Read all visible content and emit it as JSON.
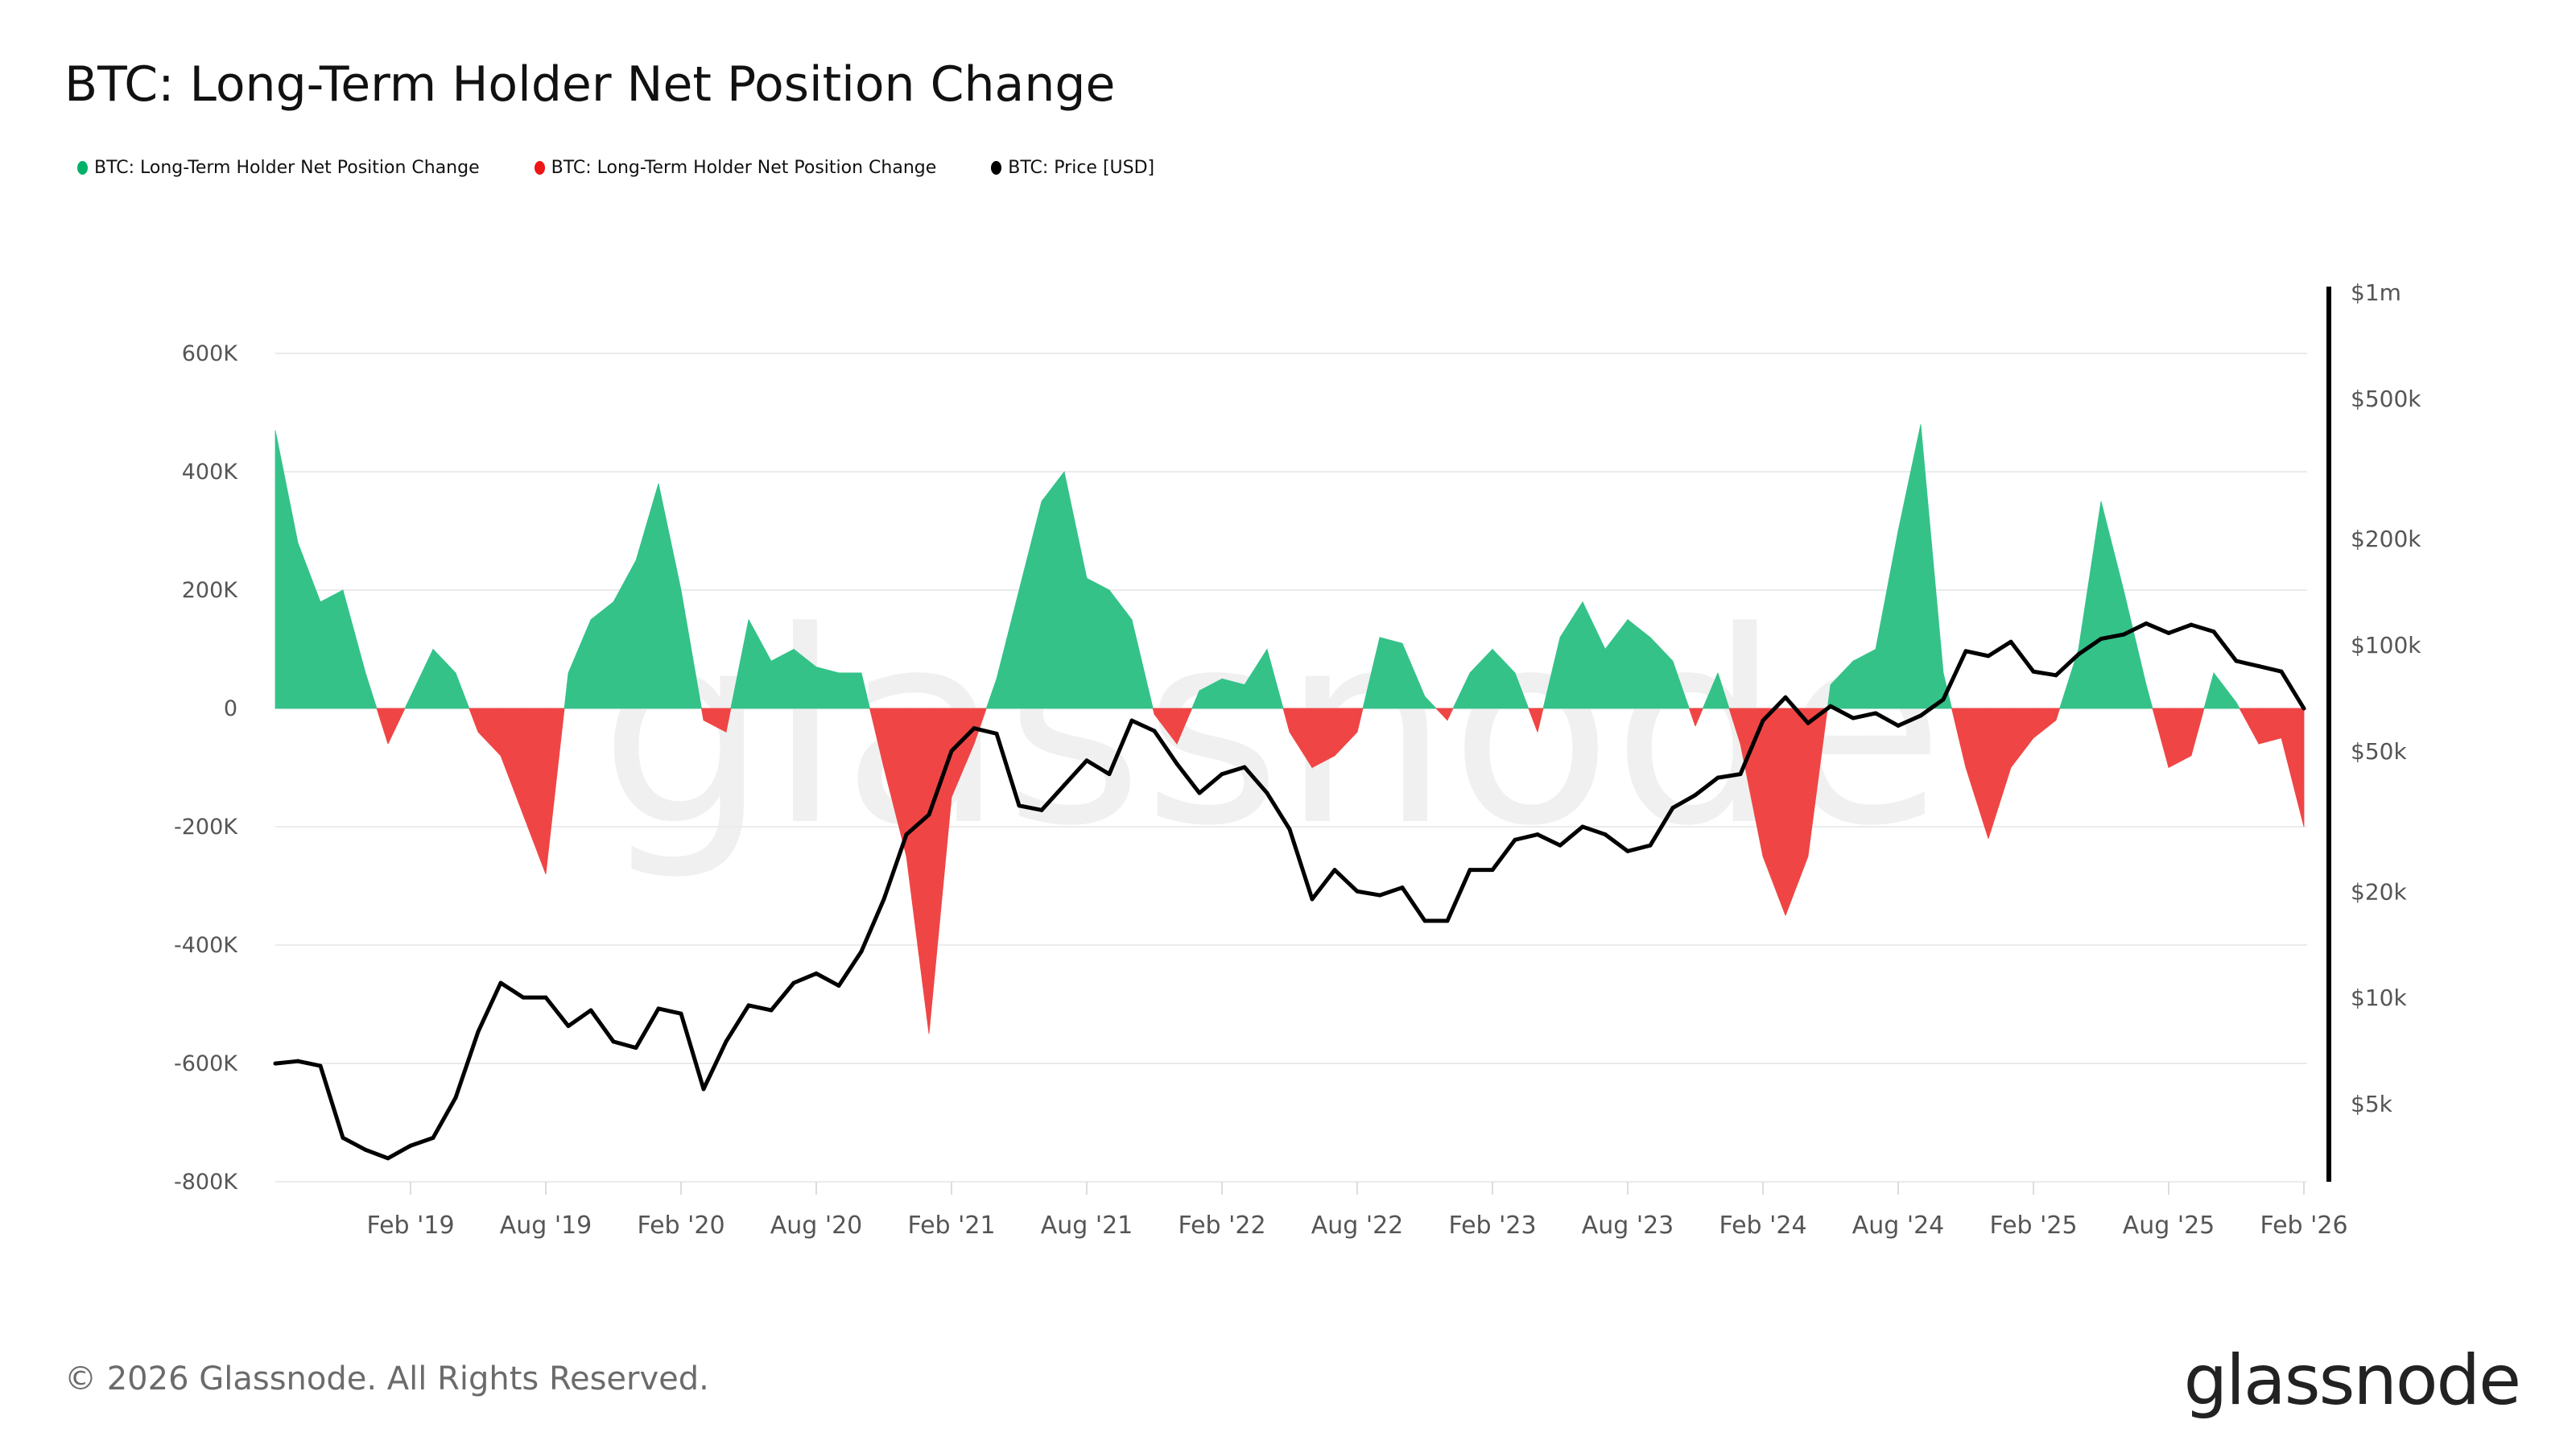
{
  "title": "BTC: Long-Term Holder Net Position Change",
  "legend": [
    {
      "label": "BTC: Long-Term Holder Net Position Change",
      "color": "#00b167"
    },
    {
      "label": "BTC: Long-Term Holder Net Position Change",
      "color": "#ee1515"
    },
    {
      "label": "BTC: Price [USD]",
      "color": "#000000"
    }
  ],
  "footer": "© 2026 Glassnode. All Rights Reserved.",
  "logo": "glassnode",
  "watermark": "glassnode",
  "chart_data": {
    "type": "area",
    "title": "BTC: Long-Term Holder Net Position Change",
    "colors": {
      "positive": "#34c289",
      "negative": "#f04545",
      "price": "#000000"
    },
    "x": [
      "2018-08",
      "2018-09",
      "2018-10",
      "2018-11",
      "2018-12",
      "2019-01",
      "2019-02",
      "2019-03",
      "2019-04",
      "2019-05",
      "2019-06",
      "2019-07",
      "2019-08",
      "2019-09",
      "2019-10",
      "2019-11",
      "2019-12",
      "2020-01",
      "2020-02",
      "2020-03",
      "2020-04",
      "2020-05",
      "2020-06",
      "2020-07",
      "2020-08",
      "2020-09",
      "2020-10",
      "2020-11",
      "2020-12",
      "2021-01",
      "2021-02",
      "2021-03",
      "2021-04",
      "2021-05",
      "2021-06",
      "2021-07",
      "2021-08",
      "2021-09",
      "2021-10",
      "2021-11",
      "2021-12",
      "2022-01",
      "2022-02",
      "2022-03",
      "2022-04",
      "2022-05",
      "2022-06",
      "2022-07",
      "2022-08",
      "2022-09",
      "2022-10",
      "2022-11",
      "2022-12",
      "2023-01",
      "2023-02",
      "2023-03",
      "2023-04",
      "2023-05",
      "2023-06",
      "2023-07",
      "2023-08",
      "2023-09",
      "2023-10",
      "2023-11",
      "2023-12",
      "2024-01",
      "2024-02",
      "2024-03",
      "2024-04",
      "2024-05",
      "2024-06",
      "2024-07",
      "2024-08",
      "2024-09",
      "2024-10",
      "2024-11",
      "2024-12",
      "2025-01",
      "2025-02",
      "2025-03",
      "2025-04",
      "2025-05",
      "2025-06",
      "2025-07",
      "2025-08",
      "2025-09",
      "2025-10",
      "2025-11",
      "2025-12",
      "2026-01",
      "2026-02"
    ],
    "series": [
      {
        "name": "BTC: Long-Term Holder Net Position Change",
        "axis": "left",
        "values": [
          470000,
          280000,
          180000,
          200000,
          60000,
          -60000,
          20000,
          100000,
          60000,
          -40000,
          -80000,
          -180000,
          -280000,
          60000,
          150000,
          180000,
          250000,
          380000,
          200000,
          -20000,
          -40000,
          150000,
          80000,
          100000,
          70000,
          60000,
          60000,
          -100000,
          -250000,
          -550000,
          -150000,
          -60000,
          50000,
          200000,
          350000,
          400000,
          220000,
          200000,
          150000,
          -10000,
          -60000,
          30000,
          50000,
          40000,
          100000,
          -40000,
          -100000,
          -80000,
          -40000,
          120000,
          110000,
          20000,
          -20000,
          60000,
          100000,
          60000,
          -40000,
          120000,
          180000,
          100000,
          150000,
          120000,
          80000,
          -30000,
          60000,
          -60000,
          -250000,
          -350000,
          -250000,
          40000,
          80000,
          100000,
          300000,
          480000,
          60000,
          -100000,
          -220000,
          -100000,
          -50000,
          -20000,
          100000,
          350000,
          200000,
          40000,
          -100000,
          -80000,
          60000,
          10000,
          -60000,
          -50000,
          -200000
        ]
      },
      {
        "name": "BTC: Price [USD]",
        "axis": "right",
        "scale": "log",
        "values": [
          6500,
          6600,
          6400,
          4000,
          3700,
          3500,
          3800,
          4000,
          5200,
          8000,
          11000,
          10000,
          10000,
          8300,
          9200,
          7500,
          7200,
          9300,
          9000,
          5500,
          7500,
          9500,
          9200,
          11000,
          11700,
          10800,
          13500,
          19000,
          29000,
          33000,
          50000,
          58000,
          56000,
          35000,
          34000,
          40000,
          47000,
          43000,
          61000,
          57000,
          46000,
          38000,
          43000,
          45000,
          38000,
          30000,
          19000,
          23000,
          20000,
          19500,
          20500,
          16500,
          16500,
          23000,
          23000,
          28000,
          29000,
          27000,
          30500,
          29000,
          26000,
          27000,
          34500,
          37500,
          42000,
          43000,
          61000,
          71000,
          60000,
          67000,
          62000,
          64000,
          59000,
          63000,
          70000,
          96000,
          93000,
          102000,
          84000,
          82000,
          94000,
          104000,
          107000,
          115000,
          108000,
          114000,
          109000,
          90000,
          87000,
          84000,
          66000
        ]
      }
    ],
    "x_tick_labels": [
      "Feb '19",
      "Aug '19",
      "Feb '20",
      "Aug '20",
      "Feb '21",
      "Aug '21",
      "Feb '22",
      "Aug '22",
      "Feb '23",
      "Aug '23",
      "Feb '24",
      "Aug '24",
      "Feb '25",
      "Aug '25",
      "Feb '26"
    ],
    "y_left": {
      "ticks": [
        600000,
        400000,
        200000,
        0,
        -200000,
        -400000,
        -600000,
        -800000
      ],
      "tick_labels": [
        "600K",
        "400K",
        "200K",
        "0",
        "-200K",
        "-400K",
        "-600K",
        "-800K"
      ],
      "range": [
        -800000,
        600000
      ]
    },
    "y_right": {
      "scale": "log",
      "ticks": [
        1000000,
        500000,
        200000,
        100000,
        50000,
        20000,
        10000,
        5000
      ],
      "tick_labels": [
        "$1m",
        "$500k",
        "$200k",
        "$100k",
        "$50k",
        "$20k",
        "$10k",
        "$5k"
      ],
      "range": [
        3500,
        1000000
      ]
    },
    "grid": true,
    "legend_position": "top-left"
  }
}
